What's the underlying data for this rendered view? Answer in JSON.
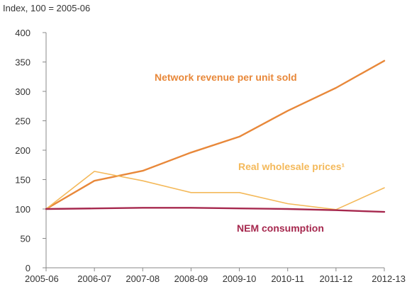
{
  "chart_data": {
    "type": "line",
    "ylabel": "Index, 100 = 2005-06",
    "categories": [
      "2005-06",
      "2006-07",
      "2007-08",
      "2008-09",
      "2009-10",
      "2010-11",
      "2011-12",
      "2012-13"
    ],
    "ylim": [
      0,
      400
    ],
    "yticks": [
      0,
      50,
      100,
      150,
      200,
      250,
      300,
      350,
      400
    ],
    "grid": false,
    "series": [
      {
        "name": "Network revenue per unit sold",
        "color": "#E8883A",
        "values": [
          100,
          148,
          165,
          196,
          223,
          267,
          306,
          352
        ]
      },
      {
        "name": "Real wholesale prices¹",
        "color": "#F4B95A",
        "values": [
          100,
          164,
          148,
          128,
          128,
          109,
          99,
          136
        ]
      },
      {
        "name": "NEM consumption",
        "color": "#A6284E",
        "values": [
          100,
          101,
          102,
          102,
          101,
          100,
          98,
          95
        ]
      }
    ]
  }
}
